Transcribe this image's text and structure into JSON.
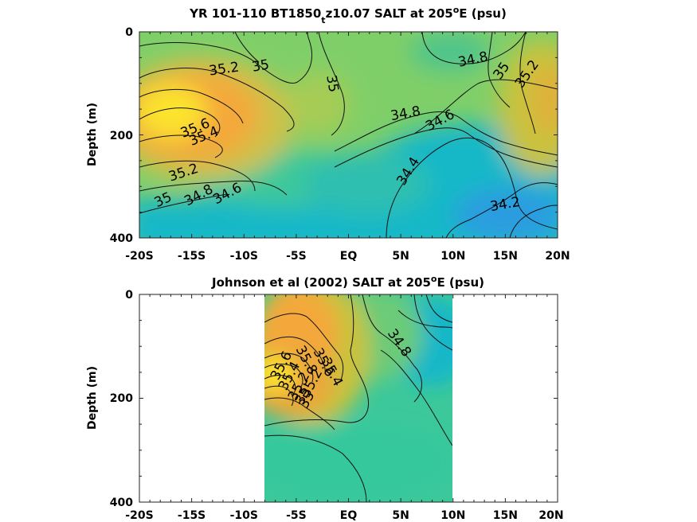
{
  "chart_data": [
    {
      "type": "heatmap",
      "title": "YR 101-110 BT1850",
      "title_sub": "t",
      "title_rest": "z10.07 SALT at 205",
      "title_deg": "o",
      "title_end": "E (psu)",
      "ylabel": "Depth (m)",
      "xlim": [
        -20,
        20
      ],
      "ylim": [
        0,
        400
      ],
      "x_tick_labels": [
        "-20S",
        "-15S",
        "-10S",
        "-5S",
        "EQ",
        "5N",
        "10N",
        "15N",
        "20N"
      ],
      "x_tick_values": [
        -20,
        -15,
        -10,
        -5,
        0,
        5,
        10,
        15,
        20
      ],
      "y_tick_labels": [
        "0",
        "200",
        "400"
      ],
      "y_tick_values": [
        0,
        200,
        400
      ],
      "data_extent": [
        -20,
        20
      ],
      "contour_levels": [
        "35.2",
        "35",
        "35",
        "34.8",
        "35",
        "35.2",
        "34.8",
        "34.6",
        "35.6",
        "35.4",
        "35.2",
        "35",
        "34.8",
        "34.6",
        "34.4",
        "34.2"
      ],
      "color_scale": [
        "#2a9de0",
        "#12b8c8",
        "#3cc89a",
        "#8ad064",
        "#c8c23e",
        "#f4a83a",
        "#fbe32e"
      ]
    },
    {
      "type": "heatmap",
      "title": "Johnson et al (2002) SALT at 205",
      "title_deg": "o",
      "title_end": "E (psu)",
      "ylabel": "Depth (m)",
      "xlim": [
        -20,
        20
      ],
      "ylim": [
        0,
        400
      ],
      "x_tick_labels": [
        "-20S",
        "-15S",
        "-10S",
        "-5S",
        "EQ",
        "5N",
        "10N",
        "15N",
        "20N"
      ],
      "x_tick_values": [
        -20,
        -15,
        -10,
        -5,
        0,
        5,
        10,
        15,
        20
      ],
      "y_tick_labels": [
        "0",
        "200",
        "400"
      ],
      "y_tick_values": [
        0,
        200,
        400
      ],
      "data_extent": [
        -8,
        10
      ],
      "contour_levels": [
        "34.8",
        "35",
        "35.2",
        "35.4",
        "35.6",
        "35.8",
        "35.6",
        "35.4",
        "35.2",
        "35"
      ],
      "color_scale": [
        "#12b8c8",
        "#3cc89a",
        "#8ad064",
        "#c8c23e",
        "#f4a83a",
        "#fbe32e"
      ]
    }
  ]
}
